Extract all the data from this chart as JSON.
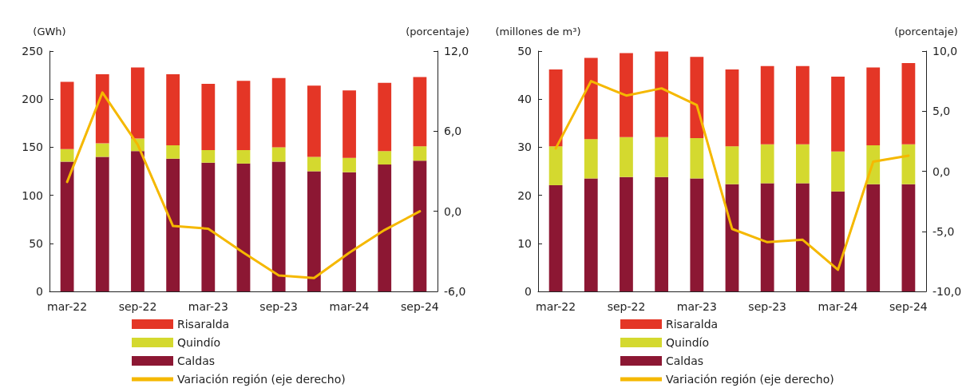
{
  "chart_data": [
    {
      "type": "bar",
      "stacked": true,
      "categories": [
        "mar-22",
        null,
        "sep-22",
        null,
        "mar-23",
        null,
        "sep-23",
        null,
        "mar-24",
        null,
        "sep-24"
      ],
      "ylabel": "(GWh)",
      "y2label": "(porcentaje)",
      "ylim": [
        0,
        250
      ],
      "yticks": [
        0,
        50,
        100,
        150,
        200,
        250
      ],
      "y2lim": [
        -6,
        12
      ],
      "y2ticks": [
        {
          "value": -6,
          "label": "-6,0"
        },
        {
          "value": 0,
          "label": "0,0"
        },
        {
          "value": 6,
          "label": "6,0"
        },
        {
          "value": 12,
          "label": "12,0"
        }
      ],
      "grid": false,
      "legend": "bottom",
      "series": [
        {
          "name": "Caldas",
          "color": "#8c1733",
          "values": [
            135,
            140,
            146,
            138,
            134,
            133,
            135,
            125,
            124,
            132,
            136
          ]
        },
        {
          "name": "Quindío",
          "color": "#d4d92f",
          "values": [
            13,
            14,
            13,
            14,
            13,
            14,
            15,
            15,
            15,
            14,
            15
          ]
        },
        {
          "name": "Risaralda",
          "color": "#e43626",
          "values": [
            70,
            72,
            74,
            74,
            69,
            72,
            72,
            74,
            70,
            71,
            72
          ]
        },
        {
          "name": "Variación región (eje derecho)",
          "type": "line",
          "axis": "y2",
          "marker": "none",
          "color": "#f5b800",
          "values": [
            2.2,
            8.9,
            5.0,
            -1.1,
            -1.3,
            -3.1,
            -4.8,
            -5.0,
            -3.1,
            -1.4,
            0.0
          ]
        }
      ]
    },
    {
      "type": "bar",
      "stacked": true,
      "categories": [
        "mar-22",
        null,
        "sep-22",
        null,
        "mar-23",
        null,
        "sep-23",
        null,
        "mar-24",
        null,
        "sep-24"
      ],
      "ylabel": "(millones de m³)",
      "y2label": "(porcentaje)",
      "ylim": [
        0,
        50
      ],
      "yticks": [
        0,
        10,
        20,
        30,
        40,
        50
      ],
      "y2lim": [
        -10,
        10
      ],
      "y2ticks": [
        {
          "value": -10,
          "label": "-10,0"
        },
        {
          "value": -5,
          "label": "-5,0"
        },
        {
          "value": 0,
          "label": "0,0"
        },
        {
          "value": 5,
          "label": "5,0"
        },
        {
          "value": 10,
          "label": "10,0"
        }
      ],
      "grid": false,
      "legend": "bottom",
      "series": [
        {
          "name": "Caldas",
          "color": "#8c1733",
          "values": [
            22.1,
            23.5,
            23.8,
            23.8,
            23.5,
            22.3,
            22.5,
            22.5,
            20.8,
            22.3,
            22.3
          ]
        },
        {
          "name": "Quindío",
          "color": "#d4d92f",
          "values": [
            8.1,
            8.2,
            8.3,
            8.3,
            8.4,
            7.9,
            8.1,
            8.1,
            8.3,
            8.1,
            8.3
          ]
        },
        {
          "name": "Risaralda",
          "color": "#e43626",
          "values": [
            16.0,
            16.9,
            17.5,
            17.8,
            16.9,
            16.0,
            16.3,
            16.3,
            15.6,
            16.2,
            16.9
          ]
        },
        {
          "name": "Variación región (eje derecho)",
          "type": "line",
          "axis": "y2",
          "marker": "none",
          "color": "#f5b800",
          "values": [
            1.9,
            7.5,
            6.3,
            6.9,
            5.5,
            -4.8,
            -5.9,
            -5.7,
            -8.2,
            0.8,
            1.3
          ]
        }
      ]
    }
  ]
}
